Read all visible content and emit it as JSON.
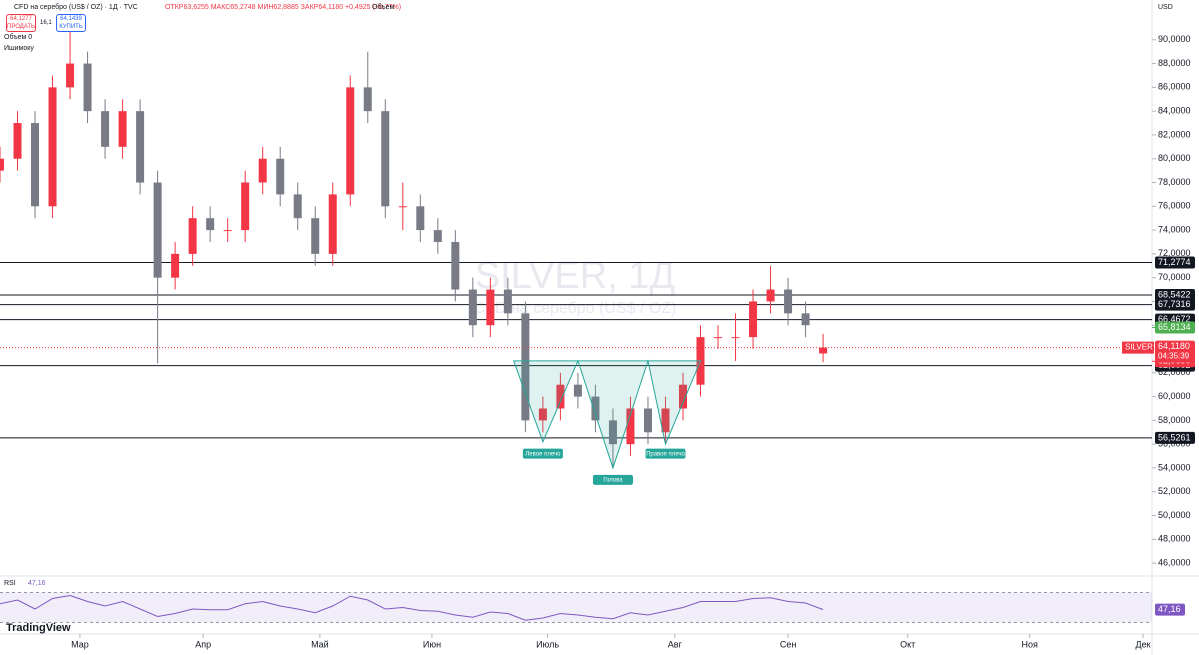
{
  "chart_data": {
    "type": "candlestick",
    "symbol_title": "CFD на серебро (US$ / OZ) · 1Д · TVC",
    "ohlc_header": "ОТКР63,6255 МАКС65,2748 МИН62,8885 ЗАКР64,1180 +0,4925 (+0,77%)",
    "volume_header": "Объем",
    "sell_price": "64,1277",
    "sell_label": "ПРОДАТЬ",
    "spread": "16,1",
    "buy_price": "64,1439",
    "buy_label": "КУПИТЬ",
    "volume_indicator": "Объем 0",
    "ichimoku_indicator": "Ишимоку",
    "currency": "USD",
    "brand": "TradingView",
    "watermark": "SILVER, 1Д",
    "watermark_sub": "CFD на серебро (US$ / OZ)",
    "up_color": "#f23645",
    "down_color": "#787b86",
    "x": [
      0,
      3,
      6,
      9,
      12,
      15,
      18,
      21,
      24,
      27,
      30,
      33,
      36,
      39,
      42,
      45,
      48,
      51,
      54,
      57,
      60,
      63,
      66,
      69,
      72,
      75,
      78,
      81,
      84,
      87,
      90,
      93,
      96,
      99,
      102,
      105,
      108,
      111,
      114,
      117,
      120,
      123,
      126,
      129,
      132,
      135,
      138,
      141
    ],
    "open": [
      79,
      80,
      83,
      76,
      86,
      88,
      84,
      81,
      84,
      78,
      70,
      72,
      75,
      74,
      74,
      78,
      80,
      77,
      75,
      72,
      77,
      86,
      84,
      76,
      76,
      74,
      73,
      69,
      66,
      69,
      67,
      58,
      59,
      61,
      60,
      58,
      56,
      59,
      57,
      59,
      61,
      65,
      65,
      65,
      68,
      69,
      67,
      63.6255
    ],
    "high": [
      81,
      84,
      84,
      87,
      91,
      89,
      85,
      85,
      85,
      79,
      73,
      76,
      76,
      75,
      79,
      81,
      81,
      78,
      76,
      78,
      87,
      89,
      85,
      78,
      77,
      75,
      74,
      70,
      70,
      70,
      68,
      60,
      62,
      62,
      61,
      59,
      60,
      60,
      60,
      62,
      66,
      66,
      67,
      69,
      71,
      70,
      68,
      65.2748
    ],
    "low": [
      78,
      79,
      75,
      75,
      85,
      83,
      80,
      80,
      77,
      62.8,
      69,
      71,
      73,
      73,
      73,
      77,
      76,
      74,
      71,
      71,
      76,
      83,
      75,
      74,
      73,
      72,
      68,
      65,
      65,
      66,
      57,
      57,
      58,
      59,
      57,
      54,
      55,
      56,
      56,
      58,
      60,
      64,
      63,
      64,
      67,
      66,
      65,
      62.8885
    ],
    "close": [
      80,
      83,
      76,
      86,
      88,
      84,
      81,
      84,
      78,
      70,
      72,
      75,
      74,
      74,
      78,
      80,
      77,
      75,
      72,
      77,
      86,
      84,
      76,
      76,
      74,
      73,
      69,
      66,
      69,
      67,
      58,
      59,
      61,
      60,
      58,
      56,
      59,
      57,
      59,
      61,
      65,
      65,
      65,
      68,
      69,
      67,
      66,
      64.118
    ],
    "xlim": [
      0,
      197
    ],
    "xticks": [
      {
        "value": 13.7,
        "label": "Мар"
      },
      {
        "value": 34.8,
        "label": "Апр"
      },
      {
        "value": 54.8,
        "label": "Май"
      },
      {
        "value": 74,
        "label": "Июн"
      },
      {
        "value": 93.8,
        "label": "Июль"
      },
      {
        "value": 115.6,
        "label": "Авг"
      },
      {
        "value": 135,
        "label": "Сен"
      },
      {
        "value": 155.5,
        "label": "Окт"
      },
      {
        "value": 176.4,
        "label": "Ноя"
      },
      {
        "value": 195.8,
        "label": "Дек"
      }
    ],
    "ylim": [
      45,
      92
    ],
    "yticks": [
      {
        "value": 46,
        "label": "46,0000"
      },
      {
        "value": 48,
        "label": "48,0000"
      },
      {
        "value": 50,
        "label": "50,0000"
      },
      {
        "value": 52,
        "label": "52,0000"
      },
      {
        "value": 54,
        "label": "54,0000"
      },
      {
        "value": 56,
        "label": "56,0000"
      },
      {
        "value": 58,
        "label": "58,0000"
      },
      {
        "value": 60,
        "label": "60,0000"
      },
      {
        "value": 62,
        "label": "62,0000"
      },
      {
        "value": 64,
        "label": "64,0000"
      },
      {
        "value": 66,
        "label": "66,0000"
      },
      {
        "value": 68,
        "label": "68,0000"
      },
      {
        "value": 70,
        "label": "70,0000"
      },
      {
        "value": 72,
        "label": "72,0000"
      },
      {
        "value": 74,
        "label": "74,0000"
      },
      {
        "value": 76,
        "label": "76,0000"
      },
      {
        "value": 78,
        "label": "78,0000"
      },
      {
        "value": 80,
        "label": "80,0000"
      },
      {
        "value": 82,
        "label": "82,0000"
      },
      {
        "value": 84,
        "label": "84,0000"
      },
      {
        "value": 86,
        "label": "86,0000"
      },
      {
        "value": 88,
        "label": "88,0000"
      },
      {
        "value": 90,
        "label": "90,0000"
      }
    ],
    "levels": [
      {
        "value": 71.2774,
        "label": "71,2774",
        "color": "#131722"
      },
      {
        "value": 68.5422,
        "label": "68,5422",
        "color": "#131722"
      },
      {
        "value": 67.7316,
        "label": "67,7316",
        "color": "#131722"
      },
      {
        "value": 66.4672,
        "label": "66,4672",
        "color": "#131722"
      },
      {
        "value": 62.6002,
        "label": "62,6002",
        "color": "#131722"
      },
      {
        "value": 56.5261,
        "label": "56,5261",
        "color": "#131722"
      }
    ],
    "markers": [
      {
        "value": 65.8134,
        "label": "65,8134",
        "color": "#4caf50"
      },
      {
        "value": 62.969,
        "label": "62,9690",
        "color": "#f23645"
      }
    ],
    "last_price": {
      "value": 64.118,
      "label": "64,1180",
      "symbol": "SILVER",
      "countdown": "04:35:39",
      "color": "#f23645"
    },
    "annotations": [
      "Левое плечо",
      "Голова",
      "Правое плечо"
    ],
    "rsi": {
      "name": "RSI",
      "value_label": "47,16",
      "color": "#7e57c2",
      "ylim": [
        20,
        80
      ],
      "bands": [
        70,
        30
      ],
      "values": [
        55,
        60,
        48,
        62,
        66,
        58,
        52,
        58,
        48,
        38,
        42,
        48,
        47,
        47,
        55,
        58,
        52,
        48,
        43,
        52,
        65,
        60,
        48,
        50,
        46,
        45,
        40,
        37,
        44,
        42,
        33,
        36,
        42,
        40,
        37,
        35,
        43,
        40,
        45,
        50,
        58,
        58,
        58,
        62,
        63,
        58,
        56,
        47.16
      ]
    }
  }
}
